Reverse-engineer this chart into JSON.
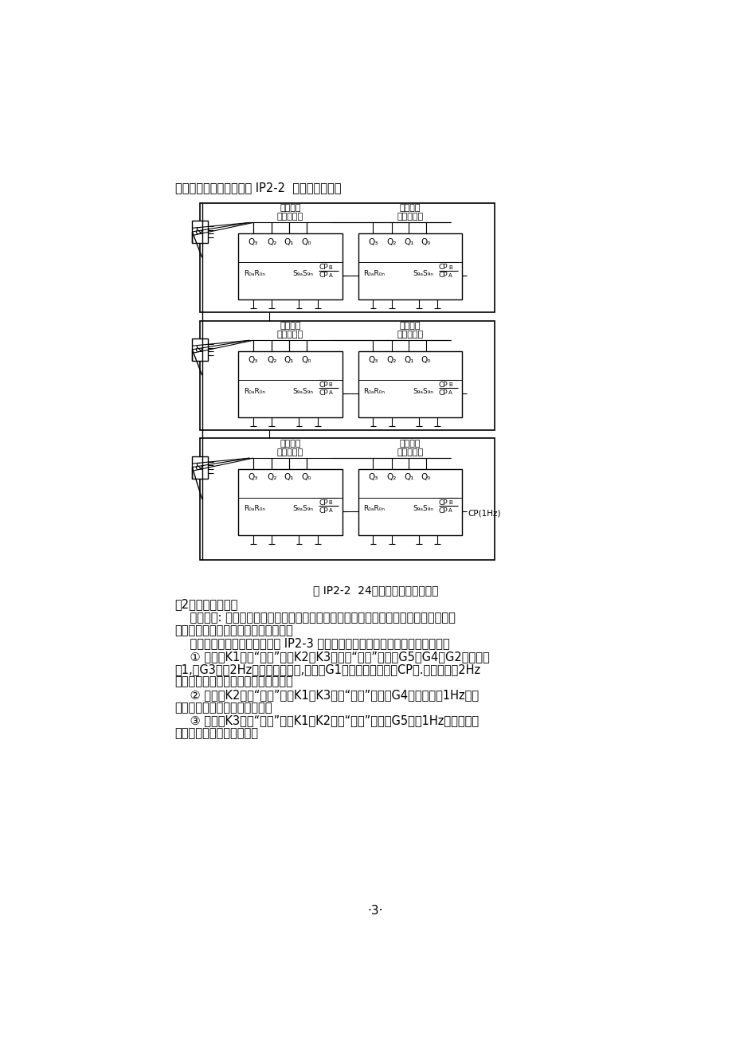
{
  "bg_color": "#ffffff",
  "top_text": "计时器电路设计可参考图 IP2-2  所示逻辑电路。",
  "caption": "图 IP2-2  24进制计时器逻辑电路图",
  "para2_title": "（2）校时电路设计",
  "para2_intro_1": "    任务分析: 校时电路的作用是在电源刚启动时，对计时器进行时、分、秒的的校准。可",
  "para2_intro_2": "通过控制各计数器的时钟脉冲来实现。",
  "para2_rec": "    方案建议：参考校时电路如图 IP2-3 所示。校时和计时的切换用双掷开关实现。",
  "para2_1_1": "    ① 校秒：K1接至“校时”位，K2、K3均接至“计时”位，门G5、G4、G2的输出均",
  "para2_1_2": "为1,门G3输出2Hz的时钟脉冲信号,通过门G1送至秒个位计数器CP端.采用频率为2Hz",
  "para2_1_3": "的时钟脉冲，目的是加快校秒的速度。",
  "para2_2_1": "    ② 校分：K2接至“校时”位，K1、K3接至“计时”位，门G4打开，输出1Hz的时",
  "para2_2_2": "钟脉冲信号送至分个位计数器。",
  "para2_3_1": "    ③ 校时：K3接至“校时”位，K1、K2接至“计时”位，门G5输出1Hz的时钟脉冲",
  "para2_3_2": "信号，送至时个位计数器。",
  "page_num": "·3·",
  "row_labels_left": [
    "至时十位",
    "至分十位",
    "至秒十位"
  ],
  "row_labels_right": [
    "至时个位",
    "至分个位",
    "至秒个位"
  ],
  "disp_label": "显示译码器"
}
